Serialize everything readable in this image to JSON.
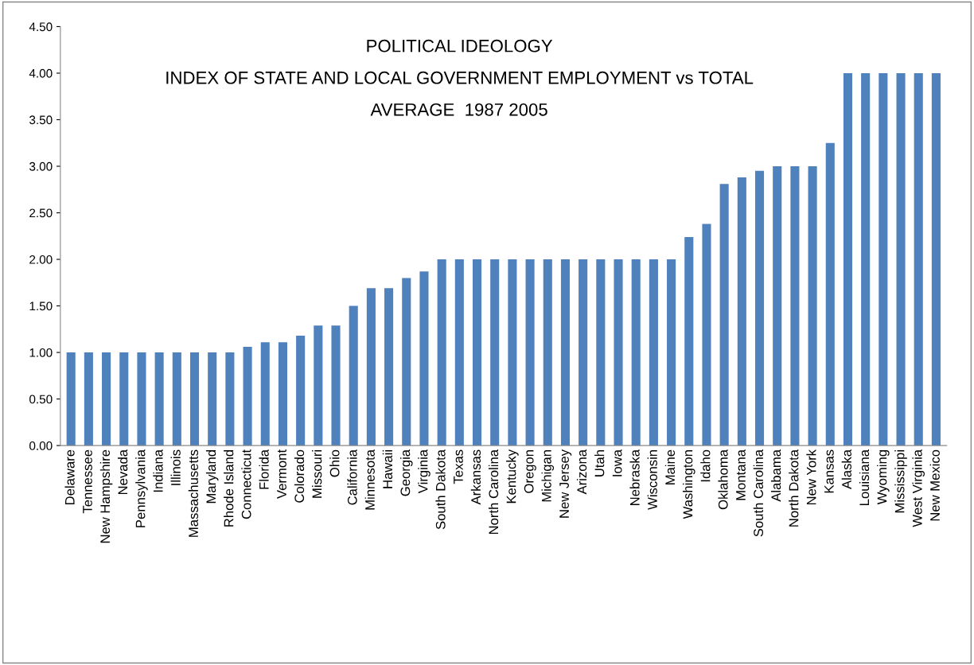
{
  "chart_data": {
    "type": "bar",
    "title": "POLITICAL IDEOLOGY\nINDEX OF STATE AND LOCAL GOVERNMENT EMPLOYMENT vs TOTAL\nAVERAGE  1987 2005",
    "categories": [
      "Delaware",
      "Tennessee",
      "New Hampshire",
      "Nevada",
      "Pennsylvania",
      "Indiana",
      "Illinois",
      "Massachusetts",
      "Maryland",
      "Rhode Island",
      "Connecticut",
      "Florida",
      "Vermont",
      "Colorado",
      "Missouri",
      "Ohio",
      "California",
      "Minnesota",
      "Hawaii",
      "Georgia",
      "Virginia",
      "South Dakota",
      "Texas",
      "Arkansas",
      "North Carolina",
      "Kentucky",
      "Oregon",
      "Michigan",
      "New Jersey",
      "Arizona",
      "Utah",
      "Iowa",
      "Nebraska",
      "Wisconsin",
      "Maine",
      "Washington",
      "Idaho",
      "Oklahoma",
      "Montana",
      "South Carolina",
      "Alabama",
      "North Dakota",
      "New York",
      "Kansas",
      "Alaska",
      "Louisiana",
      "Wyoming",
      "Mississippi",
      "West Virginia",
      "New Mexico"
    ],
    "values": [
      1.0,
      1.0,
      1.0,
      1.0,
      1.0,
      1.0,
      1.0,
      1.0,
      1.0,
      1.0,
      1.06,
      1.11,
      1.11,
      1.18,
      1.29,
      1.29,
      1.5,
      1.69,
      1.69,
      1.8,
      1.87,
      2.0,
      2.0,
      2.0,
      2.0,
      2.0,
      2.0,
      2.0,
      2.0,
      2.0,
      2.0,
      2.0,
      2.0,
      2.0,
      2.0,
      2.24,
      2.38,
      2.81,
      2.88,
      2.95,
      3.0,
      3.0,
      3.0,
      3.25,
      4.0,
      4.0,
      4.0,
      4.0,
      4.0,
      4.0
    ],
    "color": "#4f81bd",
    "ylim": [
      0,
      4.5
    ],
    "yticks": [
      {
        "value": 0,
        "label": "0.00"
      },
      {
        "value": 0.5,
        "label": "0.50"
      },
      {
        "value": 1,
        "label": "1.00"
      },
      {
        "value": 1.5,
        "label": "1.50"
      },
      {
        "value": 2,
        "label": "2.00"
      },
      {
        "value": 2.5,
        "label": "2.50"
      },
      {
        "value": 3,
        "label": "3.00"
      },
      {
        "value": 3.5,
        "label": "3.50"
      },
      {
        "value": 4,
        "label": "4.00"
      },
      {
        "value": 4.5,
        "label": "4.50"
      }
    ],
    "grid": false
  }
}
